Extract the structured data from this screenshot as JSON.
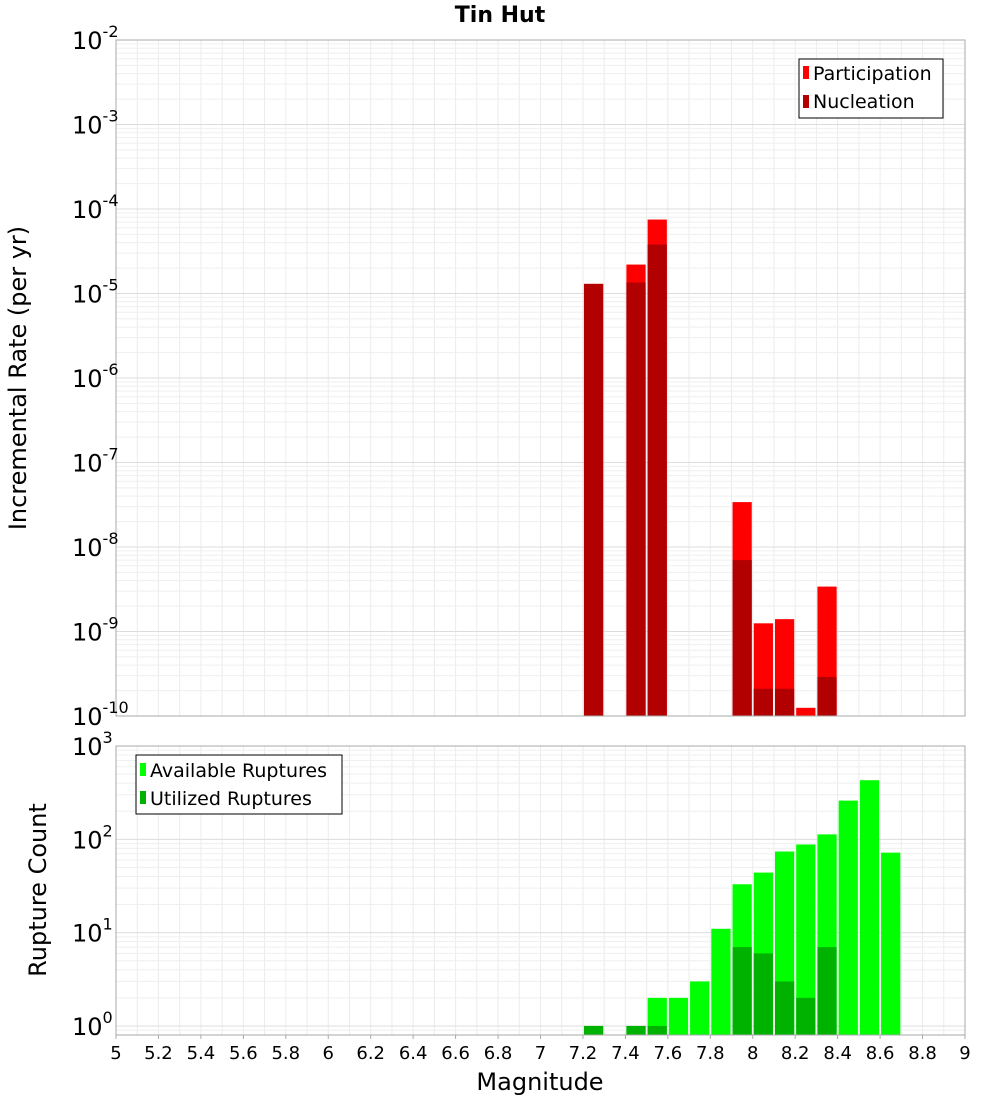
{
  "chart_data": [
    {
      "type": "bar",
      "title": "Tin Hut",
      "xlabel": "",
      "ylabel": "Incremental Rate (per yr)",
      "yscale": "log",
      "ylim": [
        1e-10,
        0.01
      ],
      "xlim": [
        5,
        9
      ],
      "bin_width": 0.1,
      "grid": true,
      "legend_position": "top-right",
      "y_ticks": [
        {
          "base": "10",
          "exp": "-10"
        },
        {
          "base": "10",
          "exp": "-9"
        },
        {
          "base": "10",
          "exp": "-8"
        },
        {
          "base": "10",
          "exp": "-7"
        },
        {
          "base": "10",
          "exp": "-6"
        },
        {
          "base": "10",
          "exp": "-5"
        },
        {
          "base": "10",
          "exp": "-4"
        },
        {
          "base": "10",
          "exp": "-3"
        },
        {
          "base": "10",
          "exp": "-2"
        }
      ],
      "series": [
        {
          "name": "Participation",
          "color": "#ff0000",
          "points": [
            {
              "x": 7.25,
              "y": 1.3e-05
            },
            {
              "x": 7.45,
              "y": 2.2e-05
            },
            {
              "x": 7.55,
              "y": 7.5e-05
            },
            {
              "x": 7.95,
              "y": 3.4e-08
            },
            {
              "x": 8.05,
              "y": 1.25e-09
            },
            {
              "x": 8.15,
              "y": 1.4e-09
            },
            {
              "x": 8.25,
              "y": 1.25e-10
            },
            {
              "x": 8.35,
              "y": 3.4e-09
            }
          ]
        },
        {
          "name": "Nucleation",
          "color": "#b20000",
          "points": [
            {
              "x": 7.25,
              "y": 1.3e-05
            },
            {
              "x": 7.45,
              "y": 1.35e-05
            },
            {
              "x": 7.55,
              "y": 3.8e-05
            },
            {
              "x": 7.95,
              "y": 7e-09
            },
            {
              "x": 8.05,
              "y": 2.1e-10
            },
            {
              "x": 8.15,
              "y": 2.1e-10
            },
            {
              "x": 8.35,
              "y": 2.9e-10
            }
          ]
        }
      ]
    },
    {
      "type": "bar",
      "title": "",
      "xlabel": "Magnitude",
      "ylabel": "Rupture Count",
      "yscale": "log",
      "ylim": [
        0.8,
        1000
      ],
      "xlim": [
        5,
        9
      ],
      "bin_width": 0.1,
      "grid": true,
      "legend_position": "top-left",
      "y_ticks": [
        {
          "base": "10",
          "exp": "0"
        },
        {
          "base": "10",
          "exp": "1"
        },
        {
          "base": "10",
          "exp": "2"
        },
        {
          "base": "10",
          "exp": "3"
        }
      ],
      "x_ticks": [
        "5",
        "5.2",
        "5.4",
        "5.6",
        "5.8",
        "6",
        "6.2",
        "6.4",
        "6.6",
        "6.8",
        "7",
        "7.2",
        "7.4",
        "7.6",
        "7.8",
        "8",
        "8.2",
        "8.4",
        "8.6",
        "8.8",
        "9"
      ],
      "series": [
        {
          "name": "Available Ruptures",
          "color": "#00ff00",
          "points": [
            {
              "x": 7.25,
              "y": 1
            },
            {
              "x": 7.45,
              "y": 1
            },
            {
              "x": 7.55,
              "y": 2
            },
            {
              "x": 7.65,
              "y": 2
            },
            {
              "x": 7.75,
              "y": 3
            },
            {
              "x": 7.85,
              "y": 11
            },
            {
              "x": 7.95,
              "y": 33
            },
            {
              "x": 8.05,
              "y": 44
            },
            {
              "x": 8.15,
              "y": 74
            },
            {
              "x": 8.25,
              "y": 88
            },
            {
              "x": 8.35,
              "y": 113
            },
            {
              "x": 8.45,
              "y": 260
            },
            {
              "x": 8.55,
              "y": 430
            },
            {
              "x": 8.65,
              "y": 72
            }
          ]
        },
        {
          "name": "Utilized Ruptures",
          "color": "#00b200",
          "points": [
            {
              "x": 7.25,
              "y": 1
            },
            {
              "x": 7.45,
              "y": 1
            },
            {
              "x": 7.55,
              "y": 1
            },
            {
              "x": 7.95,
              "y": 7
            },
            {
              "x": 8.05,
              "y": 6
            },
            {
              "x": 8.15,
              "y": 3
            },
            {
              "x": 8.25,
              "y": 2
            },
            {
              "x": 8.35,
              "y": 7
            }
          ]
        }
      ]
    }
  ]
}
